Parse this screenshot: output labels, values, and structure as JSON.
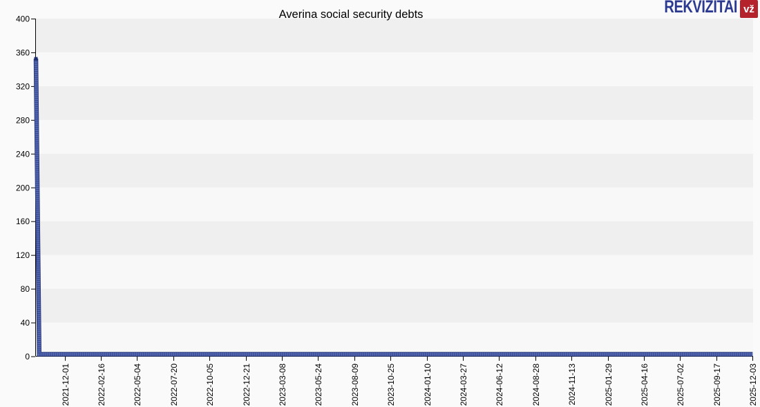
{
  "header": {
    "logo": {
      "brand": "REKVIZITAI",
      "badge": "vž"
    }
  },
  "chart_data": {
    "type": "line",
    "title": "Averina social security debts",
    "xlabel": "",
    "ylabel": "",
    "ylim": [
      0,
      400
    ],
    "y_ticks": [
      0,
      40,
      80,
      120,
      160,
      200,
      240,
      280,
      320,
      360,
      400
    ],
    "x_tick_labels": [
      "2021-12-01",
      "2022-02-16",
      "2022-05-04",
      "2022-07-20",
      "2022-10-05",
      "2022-12-21",
      "2023-03-08",
      "2023-05-24",
      "2023-08-09",
      "2023-10-25",
      "2024-01-10",
      "2024-03-27",
      "2024-06-12",
      "2024-08-28",
      "2024-11-13",
      "2025-01-29",
      "2025-04-16",
      "2025-07-02",
      "2025-09-17",
      "2025-12-03"
    ],
    "x_domain": [
      "2021-10-01",
      "2025-12-04"
    ],
    "grid": "alternating-horizontal-bands",
    "legend": "none",
    "series": [
      {
        "name": "Social security debt",
        "points": [
          [
            "2021-10-01",
            350
          ],
          [
            "2021-10-08",
            0
          ],
          [
            "2025-12-03",
            0
          ]
        ],
        "line_color": "#1e2f70",
        "fill_color": "#5568b0",
        "texture_color": "#2c3f8a"
      }
    ]
  },
  "colors": {
    "page_bg": "#fafafa",
    "band_light": "#f8f8f8",
    "band_gray": "#efefef",
    "axis": "#000000",
    "tick_label": "#000000",
    "logo_brand": "#2b3990",
    "logo_badge_bg": "#b4232c",
    "logo_badge_text": "#ffffff"
  }
}
